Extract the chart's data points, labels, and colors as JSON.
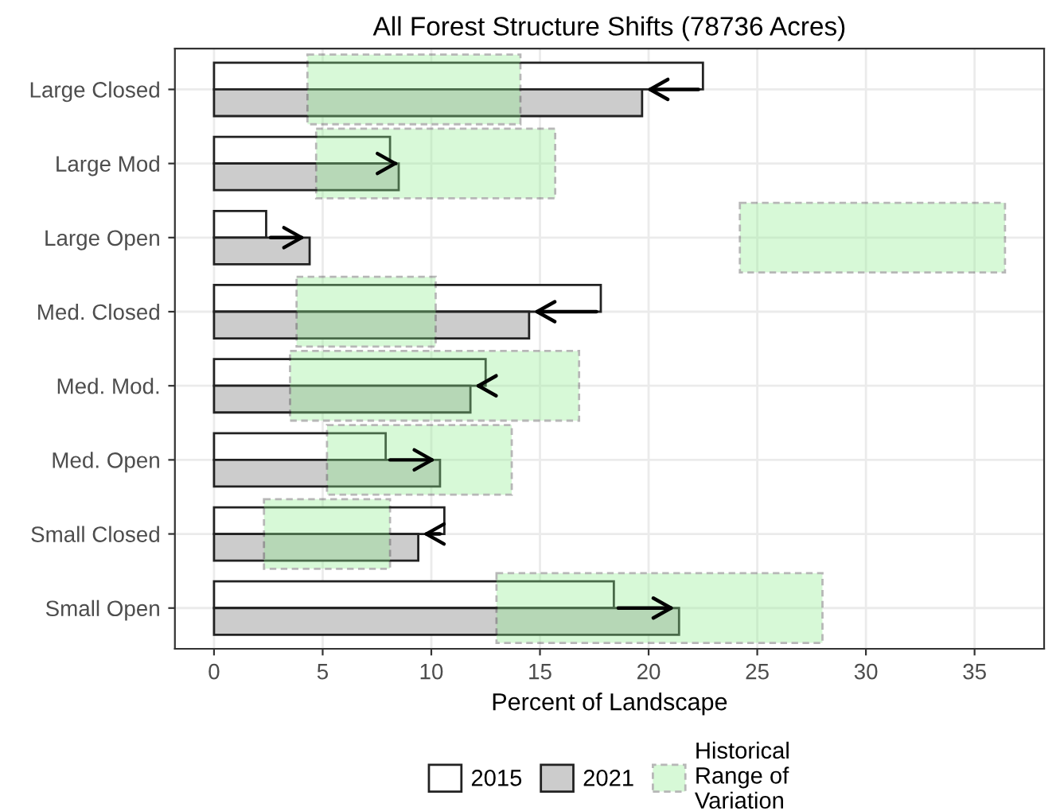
{
  "chart_data": {
    "type": "bar",
    "orientation": "horizontal",
    "title": "All Forest Structure Shifts (78736 Acres)",
    "xlabel": "Percent of Landscape",
    "categories": [
      "Large Closed",
      "Large Mod",
      "Large Open",
      "Med. Closed",
      "Med. Mod.",
      "Med. Open",
      "Small Closed",
      "Small Open"
    ],
    "series": [
      {
        "name": "2015",
        "color": "#ffffff",
        "values": [
          22.5,
          8.1,
          2.4,
          17.8,
          12.5,
          7.9,
          10.6,
          18.4
        ]
      },
      {
        "name": "2021",
        "color": "#cccccc",
        "values": [
          19.7,
          8.5,
          4.4,
          14.5,
          11.8,
          10.4,
          9.4,
          21.4
        ]
      },
      {
        "name": "Historical Range of Variation",
        "color": "#90ee90",
        "line_style": "dashed",
        "base": [
          4.3,
          4.7,
          24.2,
          3.8,
          3.5,
          5.2,
          2.3,
          13.0
        ],
        "values": [
          9.8,
          11.0,
          12.2,
          6.4,
          13.3,
          8.5,
          5.8,
          15.0
        ]
      }
    ],
    "xlim": [
      -1.8,
      38.2
    ],
    "xticks": [
      0,
      5,
      10,
      15,
      20,
      25,
      30,
      35
    ],
    "grid": true,
    "legend": "bottom"
  }
}
